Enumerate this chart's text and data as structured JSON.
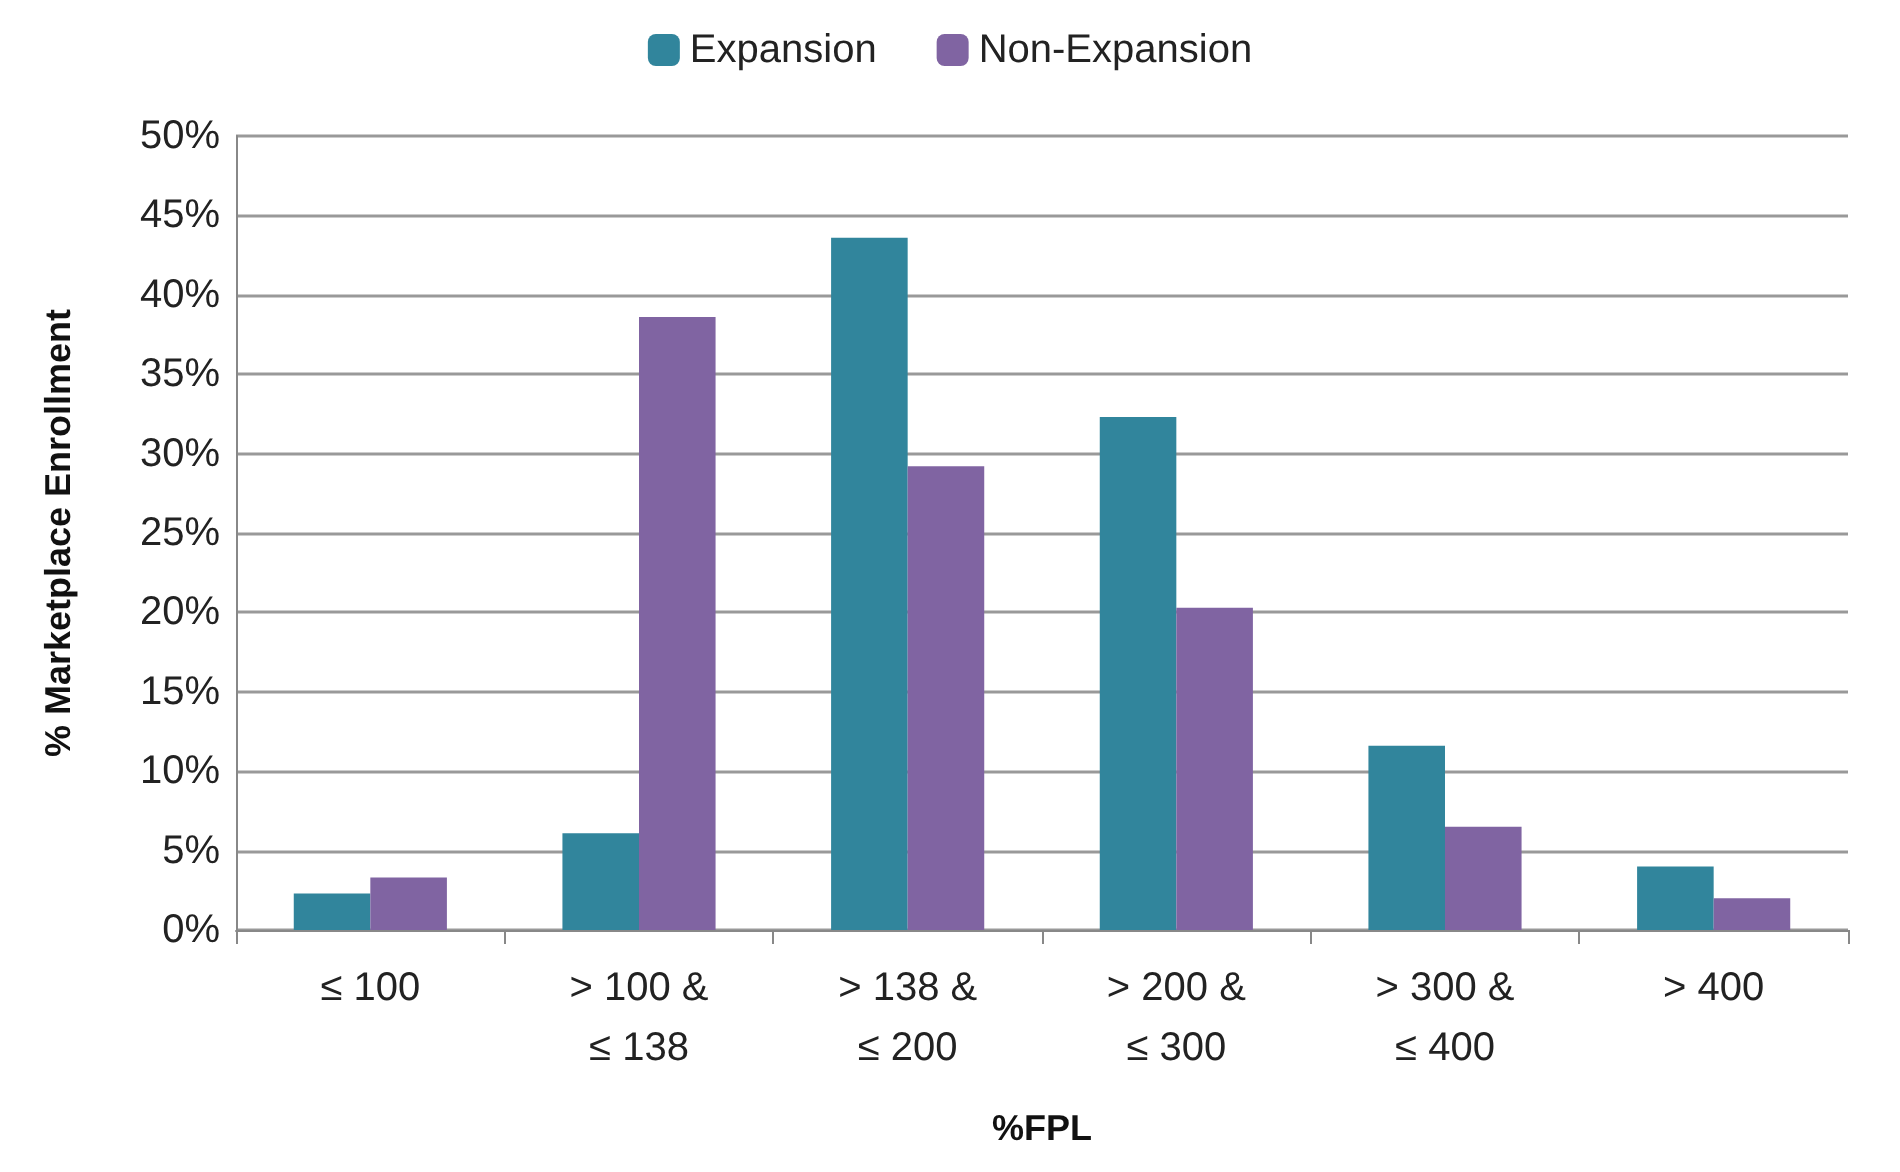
{
  "chart_data": {
    "type": "bar",
    "xlabel": "%FPL",
    "ylabel": "% Marketplace Enrollment",
    "categories": [
      "≤ 100",
      "> 100 &\n≤ 138",
      "> 138 &\n≤ 200",
      "> 200 &\n≤ 300",
      "> 300 &\n≤ 400",
      "> 400"
    ],
    "series": [
      {
        "name": "Expansion",
        "color": "#31859c",
        "values": [
          2.3,
          6.1,
          43.6,
          32.3,
          11.6,
          4.0
        ]
      },
      {
        "name": "Non-Expansion",
        "color": "#8064a2",
        "values": [
          3.3,
          38.6,
          29.2,
          20.3,
          6.5,
          2.0
        ]
      }
    ],
    "ylim": [
      0,
      50
    ],
    "yticks": [
      {
        "value": 0,
        "label": "0%"
      },
      {
        "value": 5,
        "label": "5%"
      },
      {
        "value": 10,
        "label": "10%"
      },
      {
        "value": 15,
        "label": "15%"
      },
      {
        "value": 20,
        "label": "20%"
      },
      {
        "value": 25,
        "label": "25%"
      },
      {
        "value": 30,
        "label": "30%"
      },
      {
        "value": 35,
        "label": "35%"
      },
      {
        "value": 40,
        "label": "40%"
      },
      {
        "value": 45,
        "label": "45%"
      },
      {
        "value": 50,
        "label": "50%"
      }
    ],
    "grid": "y",
    "legend": "top"
  }
}
